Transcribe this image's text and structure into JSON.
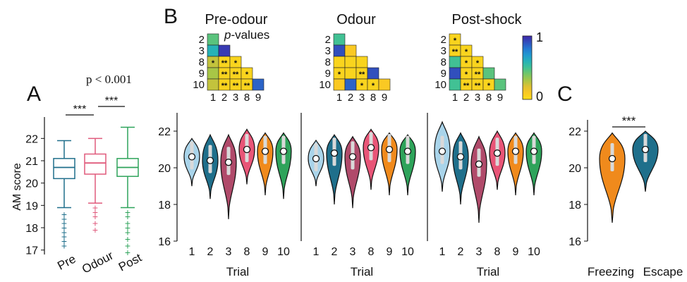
{
  "panel_letters": {
    "a": "A",
    "b": "B",
    "c": "C"
  },
  "colors": {
    "pre": "#1f6f8b",
    "odour": "#e05a7c",
    "post": "#2ea35a",
    "trial": {
      "1": "#a9d4ea",
      "2": "#1f6f8b",
      "3": "#b04a6a",
      "8": "#e85577",
      "9": "#f08a1c",
      "10": "#2ea35a"
    },
    "freezing": "#f08a1c",
    "escape": "#1f6f8b"
  },
  "chart_data": [
    {
      "id": "A",
      "type": "box",
      "ylabel": "AM score",
      "ylim": [
        16.8,
        22.8
      ],
      "yticks": [
        17,
        18,
        19,
        20,
        21,
        22
      ],
      "categories": [
        "Pre",
        "Odour",
        "Post"
      ],
      "boxes": [
        {
          "category": "Pre",
          "q1": 20.2,
          "median": 20.7,
          "q3": 21.1,
          "whisker_low": 18.9,
          "whisker_high": 21.9,
          "outliers": [
            18.6,
            18.4,
            18.2,
            18.0,
            17.8,
            17.6,
            17.4,
            17.2
          ]
        },
        {
          "category": "Odour",
          "q1": 20.4,
          "median": 20.9,
          "q3": 21.3,
          "whisker_low": 19.1,
          "whisker_high": 22.0,
          "outliers": [
            18.9,
            18.7,
            18.5,
            18.2,
            17.9
          ]
        },
        {
          "category": "Post",
          "q1": 20.3,
          "median": 20.7,
          "q3": 21.1,
          "whisker_low": 18.9,
          "whisker_high": 22.5,
          "outliers": [
            18.7,
            18.5,
            18.2,
            18.0,
            17.8,
            17.5,
            17.2,
            16.9
          ]
        }
      ],
      "annotations": {
        "p_text": "p < 0.001",
        "stars": [
          "***",
          "***"
        ]
      }
    },
    {
      "id": "B-heatmaps",
      "type": "heatmap",
      "colorbar": {
        "min": 0,
        "max": 1,
        "min_label": "0",
        "max_label": "1"
      },
      "sublabel": "p-values",
      "row_labels": [
        "2",
        "3",
        "8",
        "9",
        "10"
      ],
      "col_labels": [
        "1",
        "2",
        "3",
        "8",
        "9"
      ],
      "maps": [
        {
          "title": "Pre-odour",
          "cells": [
            [
              0.45
            ],
            [
              0.6,
              0.95
            ],
            [
              0.25,
              0.05,
              0.05
            ],
            [
              0.3,
              0.05,
              0.05,
              0.05
            ],
            [
              0.25,
              0.05,
              0.05,
              0.05,
              0.85
            ]
          ],
          "stars": [
            [
              ""
            ],
            [
              "",
              ""
            ],
            [
              "*",
              "**",
              "*"
            ],
            [
              "",
              "**",
              "**",
              "*"
            ],
            [
              "",
              "**",
              "**",
              "**",
              ""
            ]
          ]
        },
        {
          "title": "Odour",
          "cells": [
            [
              0.5
            ],
            [
              0.9,
              0.1
            ],
            [
              0.05,
              0.05,
              0.05
            ],
            [
              0.05,
              0.05,
              0.05,
              0.9
            ],
            [
              0.1,
              0.85,
              0.05,
              0.05,
              0.1
            ]
          ],
          "stars": [
            [
              ""
            ],
            [
              "",
              ""
            ],
            [
              "",
              "",
              ""
            ],
            [
              "*",
              "",
              "**",
              ""
            ],
            [
              "",
              "",
              "*",
              "*",
              ""
            ]
          ]
        },
        {
          "title": "Post-shock",
          "cells": [
            [
              0.05
            ],
            [
              0.05,
              0.05
            ],
            [
              0.5,
              0.05,
              0.05
            ],
            [
              0.9,
              0.05,
              0.05,
              0.45
            ],
            [
              0.5,
              0.05,
              0.05,
              0.05,
              0.45
            ]
          ],
          "stars": [
            [
              "*"
            ],
            [
              "**",
              "*"
            ],
            [
              "",
              "*",
              "*"
            ],
            [
              "",
              "*",
              "**",
              ""
            ],
            [
              "",
              "**",
              "**",
              "*",
              ""
            ]
          ]
        }
      ]
    },
    {
      "id": "B-violins",
      "type": "violin",
      "xlabel": "Trial",
      "ylim": [
        16,
        23
      ],
      "yticks": [
        16,
        18,
        20,
        22
      ],
      "categories": [
        "1",
        "2",
        "3",
        "8",
        "9",
        "10"
      ],
      "groups": [
        {
          "name": "Pre-odour",
          "medians": [
            20.6,
            20.4,
            20.3,
            21.0,
            20.9,
            20.9
          ],
          "min": [
            19.0,
            18.3,
            17.2,
            19.1,
            18.5,
            18.3
          ],
          "max": [
            21.6,
            21.8,
            21.8,
            22.1,
            21.9,
            21.9
          ]
        },
        {
          "name": "Odour",
          "medians": [
            20.5,
            20.8,
            20.6,
            21.1,
            21.0,
            20.9
          ],
          "min": [
            19.0,
            18.0,
            17.8,
            18.8,
            18.5,
            18.5
          ],
          "max": [
            21.5,
            21.8,
            21.7,
            22.1,
            21.9,
            21.8
          ]
        },
        {
          "name": "Post-shock",
          "medians": [
            20.9,
            20.6,
            20.2,
            20.8,
            20.9,
            20.9
          ],
          "min": [
            18.7,
            18.0,
            17.0,
            18.8,
            18.5,
            18.5
          ],
          "max": [
            22.5,
            21.9,
            21.7,
            22.0,
            21.9,
            21.9
          ]
        }
      ]
    },
    {
      "id": "C",
      "type": "violin",
      "ylim": [
        16,
        23
      ],
      "yticks": [
        16,
        18,
        20,
        22
      ],
      "categories": [
        "Freezing",
        "Escape"
      ],
      "medians": [
        20.5,
        21.0
      ],
      "min": [
        17.0,
        18.7
      ],
      "max": [
        21.9,
        22.0
      ],
      "annotations": {
        "stars": "***"
      }
    }
  ]
}
